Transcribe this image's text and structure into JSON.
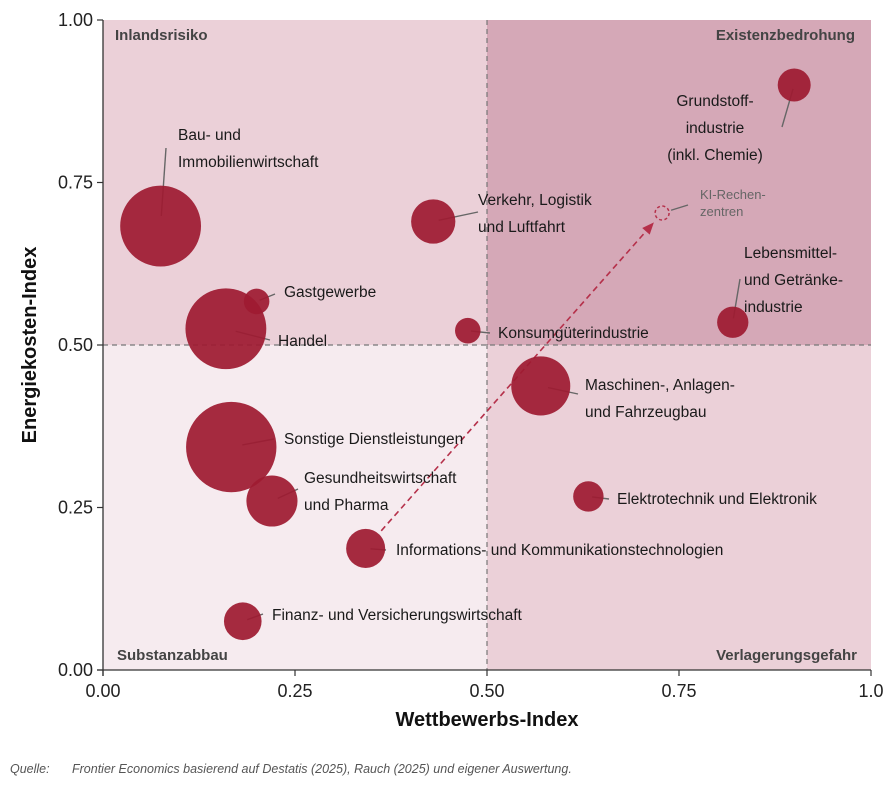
{
  "chart_data": {
    "type": "scatter",
    "subtype": "bubble",
    "xlabel": "Wettbewerbs-Index",
    "ylabel": "Energiekosten-Index",
    "xlim": [
      0,
      1
    ],
    "ylim": [
      0,
      1
    ],
    "x_ticks": [
      0,
      0.25,
      0.5,
      0.75,
      1
    ],
    "x_tick_labels": [
      "0.00",
      "0.25",
      "0.50",
      "0.75",
      "1.0"
    ],
    "y_ticks": [
      0,
      0.25,
      0.5,
      0.75,
      1
    ],
    "y_tick_labels": [
      "0.00",
      "0.25",
      "0.50",
      "0.75",
      "1.00"
    ],
    "thresholds": {
      "x": 0.5,
      "y": 0.5
    },
    "colors": {
      "bubble": "#9e1b32",
      "q_top_left": "#ebd0d8",
      "q_top_right": "#d5a8b7",
      "q_bottom_left": "#f6ebef",
      "q_bottom_right": "#ebd0d8",
      "ki": "#b5304a"
    },
    "quadrants": [
      {
        "label": "Inlandsrisiko",
        "position": "top-left"
      },
      {
        "label": "Existenzbedrohung",
        "position": "top-right"
      },
      {
        "label": "Substanzabbau",
        "position": "bottom-left"
      },
      {
        "label": "Verlagerungsgefahr",
        "position": "bottom-right"
      }
    ],
    "points": [
      {
        "name": "Grundstoffindustrie (inkl. Chemie)",
        "label_lines": [
          "Grundstoff-",
          "industrie",
          "(inkl. Chemie)"
        ],
        "x": 0.9,
        "y": 0.9,
        "size": 1.0
      },
      {
        "name": "Bau- und Immobilienwirtschaft",
        "label_lines": [
          "Bau- und",
          "Immobilienwirtschaft"
        ],
        "x": 0.075,
        "y": 0.683,
        "size": 6.0
      },
      {
        "name": "Verkehr, Logistik und Luftfahrt",
        "label_lines": [
          "Verkehr, Logistik",
          "und Luftfahrt"
        ],
        "x": 0.43,
        "y": 0.69,
        "size": 1.8
      },
      {
        "name": "KI-Rechenzentren",
        "label_lines": [
          "KI-Rechen-",
          "zentren"
        ],
        "x": 0.728,
        "y": 0.703,
        "size": 0.15,
        "style": "projection"
      },
      {
        "name": "Lebensmittel- und Getränkeindustrie",
        "label_lines": [
          "Lebensmittel-",
          "und Getränke-",
          "industrie"
        ],
        "x": 0.82,
        "y": 0.535,
        "size": 0.9
      },
      {
        "name": "Gastgewerbe",
        "label_lines": [
          "Gastgewerbe"
        ],
        "x": 0.2,
        "y": 0.567,
        "size": 0.6
      },
      {
        "name": "Handel",
        "label_lines": [
          "Handel"
        ],
        "x": 0.16,
        "y": 0.525,
        "size": 6.0
      },
      {
        "name": "Konsumgüterindustrie",
        "label_lines": [
          "Konsumgüterindustrie"
        ],
        "x": 0.475,
        "y": 0.522,
        "size": 0.6
      },
      {
        "name": "Maschinen-, Anlagen- und Fahrzeugbau",
        "label_lines": [
          "Maschinen-, Anlagen-",
          "und Fahrzeugbau"
        ],
        "x": 0.57,
        "y": 0.437,
        "size": 3.2
      },
      {
        "name": "Sonstige Dienstleistungen",
        "label_lines": [
          "Sonstige Dienstleistungen"
        ],
        "x": 0.167,
        "y": 0.343,
        "size": 7.5
      },
      {
        "name": "Gesundheitswirtschaft und Pharma",
        "label_lines": [
          "Gesundheitswirtschaft",
          "und Pharma"
        ],
        "x": 0.22,
        "y": 0.26,
        "size": 2.4
      },
      {
        "name": "Elektrotechnik und Elektronik",
        "label_lines": [
          "Elektrotechnik und Elektronik"
        ],
        "x": 0.632,
        "y": 0.267,
        "size": 0.85
      },
      {
        "name": "Informations- und Kommunikationstechnologien",
        "label_lines": [
          "Informations- und Kommunikationstechnologien"
        ],
        "x": 0.342,
        "y": 0.187,
        "size": 1.4
      },
      {
        "name": "Finanz- und Versicherungswirtschaft",
        "label_lines": [
          "Finanz- und Versicherungswirtschaft"
        ],
        "x": 0.182,
        "y": 0.075,
        "size": 1.3
      }
    ],
    "arrow": {
      "from": "Informations- und Kommunikationstechnologien",
      "to": "KI-Rechenzentren",
      "style": "dashed"
    }
  },
  "source": {
    "prefix": "Quelle:",
    "text": "Frontier Economics basierend auf Destatis (2025), Rauch (2025) und eigener Auswertung."
  }
}
